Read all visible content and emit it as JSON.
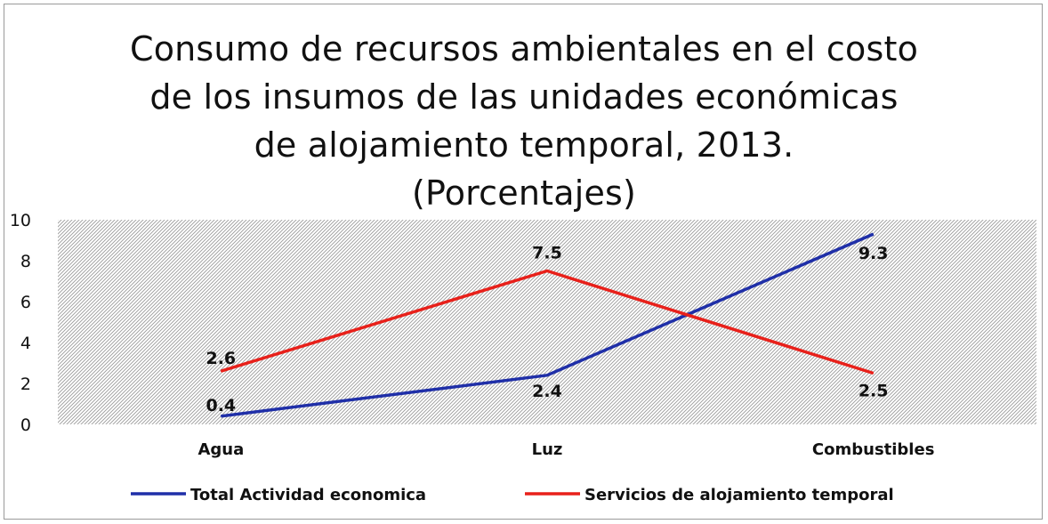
{
  "chart_data": {
    "type": "line",
    "title": "Consumo de recursos ambientales en el costo\nde los insumos de las unidades económicas\nde alojamiento temporal, 2013.\n(Porcentajes)",
    "categories": [
      "Agua",
      "Luz",
      "Combustibles"
    ],
    "series": [
      {
        "name": "Total Actividad economica",
        "values": [
          0.4,
          2.4,
          9.3
        ],
        "labels": [
          "0.4",
          "2.4",
          "9.3"
        ],
        "color": "#1f2fa8"
      },
      {
        "name": "Servicios de alojamiento temporal",
        "values": [
          2.6,
          7.5,
          2.5
        ],
        "labels": [
          "2.6",
          "7.5",
          "2.5"
        ],
        "color": "#e8201a"
      }
    ],
    "yticks": [
      "0",
      "2",
      "4",
      "6",
      "8",
      "10"
    ],
    "ylim": [
      0,
      10
    ],
    "grid": true,
    "legend": "bottom"
  }
}
